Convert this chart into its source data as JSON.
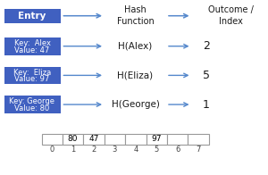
{
  "title_entry": "Entry",
  "title_hash": "Hash\nFunction",
  "title_outcome": "Outcome /\nIndex",
  "entries": [
    {
      "key": "Key:  Alex",
      "value": "Value: 47",
      "hash": "H(Alex)",
      "index": "2"
    },
    {
      "key": "Key:  Eliza",
      "value": "Value: 97",
      "hash": "H(Eliza)",
      "index": "5"
    },
    {
      "key": "Key: George",
      "value": "Value: 80",
      "hash": "H(George)",
      "index": "1"
    }
  ],
  "box_color": "#4060C0",
  "box_text_color": "#FFFFFF",
  "arrow_color": "#5588CC",
  "hash_text_color": "#1a1a1a",
  "index_text_color": "#1a1a1a",
  "array_cells": [
    "",
    "80",
    "47",
    "",
    "",
    "97",
    "",
    ""
  ],
  "array_indices": [
    "0",
    "1",
    "2",
    "3",
    "4",
    "5",
    "6",
    "7"
  ],
  "bg_color": "#FFFFFF",
  "border_color": "#999999",
  "xlim": [
    0,
    10
  ],
  "ylim": [
    0,
    7.2
  ]
}
